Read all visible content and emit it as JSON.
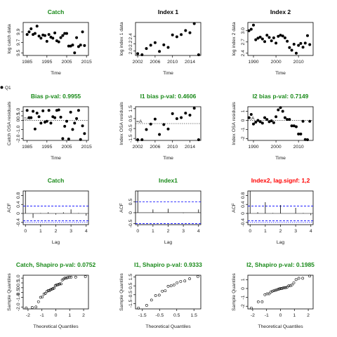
{
  "colors": {
    "ok": "#1a8a1a",
    "fail": "#ff0000",
    "limit": "#0000ff",
    "text": "#000000"
  },
  "legend": {
    "label": "Q1"
  },
  "chart_data": [
    {
      "type": "scatter",
      "title": "Catch",
      "title_color": "ok",
      "xlabel": "Time",
      "ylabel": "log catch data",
      "xlim": [
        1983,
        2016
      ],
      "ylim": [
        9.45,
        10.08
      ],
      "xticks": [
        1985,
        1995,
        2005,
        2015
      ],
      "yticks": [
        9.5,
        9.7,
        9.9
      ],
      "points": {
        "x": [
          1985,
          1986,
          1987,
          1988,
          1989,
          1990,
          1991,
          1992,
          1993,
          1994,
          1995,
          1996,
          1997,
          1998,
          1999,
          2000,
          2001,
          2002,
          2003,
          2004,
          2005,
          2006,
          2007,
          2008,
          2009,
          2010,
          2011,
          2012,
          2013,
          2014
        ],
        "y": [
          9.85,
          9.9,
          9.96,
          9.85,
          9.87,
          10.01,
          9.82,
          9.78,
          9.84,
          9.83,
          9.72,
          9.85,
          9.8,
          9.78,
          9.88,
          9.73,
          9.71,
          9.79,
          9.83,
          9.87,
          9.87,
          9.63,
          9.63,
          9.65,
          9.5,
          9.79,
          9.62,
          9.65,
          9.9,
          9.64
        ]
      }
    },
    {
      "type": "scatter",
      "title": "Index 1",
      "title_color": "text",
      "xlabel": "Time",
      "ylabel": "log index 1 data",
      "xlim": [
        2001.5,
        2016.5
      ],
      "ylim": [
        1.88,
        2.78
      ],
      "xticks": [
        2002,
        2006,
        2010,
        2014
      ],
      "yticks": [
        2.0,
        2.2,
        2.4
      ],
      "points": {
        "x": [
          2002,
          2003,
          2004,
          2005,
          2006,
          2007,
          2008,
          2009,
          2010,
          2011,
          2012,
          2013,
          2014,
          2015,
          2016
        ],
        "y": [
          1.93,
          1.9,
          2.07,
          2.16,
          2.23,
          1.99,
          2.17,
          2.1,
          2.44,
          2.39,
          2.45,
          2.56,
          2.5,
          2.75,
          1.82
        ]
      }
    },
    {
      "type": "scatter",
      "title": "Index 2",
      "title_color": "text",
      "xlabel": "Time",
      "ylabel": "log index 2 data",
      "xlim": [
        1987.5,
        2016.5
      ],
      "ylim": [
        2.34,
        3.22
      ],
      "xticks": [
        1990,
        2000,
        2010
      ],
      "yticks": [
        2.4,
        2.7,
        3.0
      ],
      "points": {
        "x": [
          1988,
          1989,
          1990,
          1991,
          1992,
          1993,
          1994,
          1995,
          1996,
          1997,
          1998,
          1999,
          2000,
          2001,
          2002,
          2003,
          2004,
          2005,
          2006,
          2007,
          2008,
          2009,
          2010,
          2011,
          2012,
          2013,
          2014,
          2015
        ],
        "y": [
          3.0,
          3.04,
          3.15,
          2.76,
          2.8,
          2.83,
          2.78,
          2.71,
          2.88,
          2.82,
          2.73,
          2.81,
          2.67,
          2.85,
          2.88,
          2.86,
          2.81,
          2.72,
          2.55,
          2.48,
          2.64,
          2.4,
          2.61,
          2.66,
          2.56,
          2.67,
          2.87,
          2.63
        ]
      }
    },
    {
      "type": "scatter",
      "title": "Bias p-val: 0.9955",
      "title_color": "ok",
      "xlabel": "Time",
      "ylabel": "Catch OSA residuals",
      "xlim": [
        1983,
        2016
      ],
      "ylim": [
        -2.2,
        1.5
      ],
      "xticks": [
        1985,
        1995,
        2005,
        2015
      ],
      "yticks": [
        -2.0,
        -1.0,
        0.0,
        0.5,
        1.0
      ],
      "points": {
        "x": [
          1985,
          1986,
          1987,
          1988,
          1989,
          1990,
          1991,
          1992,
          1993,
          1994,
          1995,
          1996,
          1997,
          1998,
          1999,
          2000,
          2001,
          2002,
          2003,
          2004,
          2005,
          2006,
          2007,
          2008,
          2009,
          2010,
          2011,
          2012,
          2013,
          2014
        ],
        "y": [
          1.1,
          0.3,
          0.3,
          1.0,
          -0.95,
          0.8,
          0.4,
          -0.3,
          1.05,
          -0.2,
          -0.1,
          1.1,
          -0.3,
          0.4,
          0.3,
          1.1,
          1.15,
          0.35,
          -2.0,
          -0.65,
          -0.1,
          -2.05,
          0.9,
          -1.0,
          -0.3,
          0.2,
          1.1,
          -2.1,
          -0.6,
          -1.45
        ]
      },
      "mean_label": "=A"
    },
    {
      "type": "scatter",
      "title": "I1 bias p-val: 0.4606",
      "title_color": "ok",
      "xlabel": "Time",
      "ylabel": "Index OSA residuals",
      "xlim": [
        2001.5,
        2016.5
      ],
      "ylim": [
        -1.7,
        1.7
      ],
      "xticks": [
        2002,
        2006,
        2010,
        2014
      ],
      "yticks": [
        -1.5,
        -0.5,
        0.5,
        1.5
      ],
      "points": {
        "x": [
          2002,
          2003,
          2004,
          2005,
          2006,
          2007,
          2008,
          2009,
          2010,
          2011,
          2012,
          2013,
          2014,
          2015,
          2016
        ],
        "y": [
          -2.0,
          -1.7,
          -0.6,
          -0.05,
          0.45,
          -1.1,
          -0.1,
          -0.55,
          1.0,
          0.5,
          0.6,
          1.05,
          0.85,
          1.55,
          -2.0
        ]
      },
      "mean_label": "=A"
    },
    {
      "type": "scatter",
      "title": "I2 bias p-val: 0.7149",
      "title_color": "ok",
      "xlabel": "Time",
      "ylabel": "Index OSA residuals",
      "xlim": [
        1987.5,
        2016.5
      ],
      "ylim": [
        -2.2,
        1.5
      ],
      "xticks": [
        1990,
        2000,
        2010
      ],
      "yticks": [
        -2.0,
        -1.0,
        0.0,
        1.0
      ],
      "points": {
        "x": [
          1988,
          1989,
          1990,
          1991,
          1992,
          1993,
          1994,
          1995,
          1996,
          1997,
          1998,
          1999,
          2000,
          2001,
          2002,
          2003,
          2004,
          2005,
          2006,
          2007,
          2008,
          2009,
          2010,
          2011,
          2012,
          2013,
          2014,
          2015
        ],
        "y": [
          0.3,
          0.65,
          -0.4,
          -0.2,
          0.0,
          -0.15,
          -0.3,
          0.3,
          0.1,
          -0.15,
          -0.05,
          -0.25,
          0.4,
          1.15,
          1.4,
          1.0,
          0.3,
          0.1,
          0.1,
          -0.6,
          -0.6,
          -0.7,
          -1.5,
          -1.5,
          -0.1,
          -2.1,
          -2.2,
          -0.1
        ]
      },
      "mean_label": "=A"
    },
    {
      "type": "bar",
      "title": "Catch",
      "title_color": "ok",
      "xlabel": "Lag",
      "ylabel": "ACF",
      "xlim": [
        -0.15,
        4.15
      ],
      "ylim": [
        -0.5,
        1.0
      ],
      "xticks": [
        0,
        1,
        2,
        3,
        4
      ],
      "yticks": [
        -0.4,
        0.0,
        0.4,
        0.8
      ],
      "lags": [
        0,
        0.5,
        1,
        1.5,
        2,
        2.5,
        3,
        3.5,
        4
      ],
      "values": [
        1.0,
        -0.2,
        0.02,
        0.05,
        -0.05,
        0.05,
        0.18,
        0.02,
        -0.1
      ],
      "ci": [
        0.33,
        -0.33
      ],
      "ci2": [
        -0.4
      ]
    },
    {
      "type": "bar",
      "title": "Index1",
      "title_color": "ok",
      "xlabel": "Lag",
      "ylabel": "ACF",
      "xlim": [
        -0.15,
        4.15
      ],
      "ylim": [
        -0.55,
        1.0
      ],
      "xticks": [
        0,
        1,
        2,
        3,
        4
      ],
      "yticks": [
        -0.5,
        0.0,
        0.5
      ],
      "lags": [
        0,
        1,
        2,
        3,
        4
      ],
      "values": [
        1.0,
        0.15,
        0.18,
        -0.02,
        0.15
      ],
      "ci": [
        0.5,
        -0.5
      ],
      "ci2": []
    },
    {
      "type": "bar",
      "title": "Index2, lag.signf: 1,2",
      "title_color": "fail",
      "xlabel": "Lag",
      "ylabel": "ACF",
      "xlim": [
        -0.15,
        4.15
      ],
      "ylim": [
        -0.5,
        1.0
      ],
      "xticks": [
        0,
        1,
        2,
        3,
        4
      ],
      "yticks": [
        -0.4,
        0.0,
        0.4,
        0.8
      ],
      "lags": [
        0,
        0.5,
        1,
        1.5,
        2,
        2.5,
        3,
        3.5,
        4
      ],
      "values": [
        1.0,
        0.05,
        0.5,
        0.02,
        0.37,
        0.0,
        0.25,
        0.02,
        -0.08
      ],
      "ci": [
        0.33,
        -0.33
      ],
      "ci2": [
        -0.4
      ]
    },
    {
      "type": "scatter",
      "title": "Catch, Shapiro p-val: 0.0752",
      "title_color": "ok",
      "xlabel": "Theoretical Quantiles",
      "ylabel": "Sample Quantiles",
      "xlim": [
        -2.35,
        2.35
      ],
      "ylim": [
        -2.2,
        1.3
      ],
      "xticks": [
        -2,
        -1,
        0,
        1,
        2
      ],
      "yticks": [
        -2.0,
        -1.0,
        -0.5,
        0.0,
        0.5,
        1.0
      ],
      "points": {
        "x": [
          -2.13,
          -1.7,
          -1.43,
          -1.25,
          -1.1,
          -0.97,
          -0.85,
          -0.75,
          -0.65,
          -0.55,
          -0.46,
          -0.38,
          -0.29,
          -0.21,
          -0.13,
          -0.04,
          0.04,
          0.13,
          0.21,
          0.29,
          0.38,
          0.46,
          0.55,
          0.65,
          0.75,
          0.85,
          0.97,
          1.1,
          1.43,
          2.13
        ],
        "y": [
          -2.1,
          -2.05,
          -2.0,
          -1.45,
          -1.0,
          -0.95,
          -0.65,
          -0.6,
          -0.4,
          -0.3,
          -0.3,
          -0.2,
          -0.15,
          -0.1,
          -0.05,
          0.2,
          0.3,
          0.3,
          0.35,
          0.4,
          0.4,
          0.8,
          0.9,
          1.0,
          1.0,
          1.05,
          1.1,
          1.1,
          1.1,
          1.15
        ]
      }
    },
    {
      "type": "scatter",
      "title": "I1, Shapiro p-val: 0.9333",
      "title_color": "ok",
      "xlabel": "Theoretical Quantiles",
      "ylabel": "Sample Quantiles",
      "xlim": [
        -1.9,
        1.9
      ],
      "ylim": [
        -2.1,
        1.7
      ],
      "xticks": [
        -1.5,
        -0.5,
        0.5,
        1.5
      ],
      "yticks": [
        -1.5,
        -0.5,
        0.5,
        1.5
      ],
      "points": {
        "x": [
          -1.73,
          -1.25,
          -0.97,
          -0.73,
          -0.52,
          -0.34,
          -0.17,
          0,
          0.17,
          0.34,
          0.52,
          0.73,
          0.97,
          1.25,
          1.73
        ],
        "y": [
          -2.0,
          -1.7,
          -1.1,
          -0.6,
          -0.55,
          -0.1,
          -0.05,
          0.45,
          0.5,
          0.6,
          0.85,
          1.0,
          1.05,
          1.3,
          1.55
        ]
      }
    },
    {
      "type": "scatter",
      "title": "I2, Shapiro p-val: 0.1985",
      "title_color": "ok",
      "xlabel": "Theoretical Quantiles",
      "ylabel": "Sample Quantiles",
      "xlim": [
        -2.35,
        2.35
      ],
      "ylim": [
        -2.3,
        1.5
      ],
      "xticks": [
        -2,
        -1,
        0,
        1,
        2
      ],
      "yticks": [
        -2,
        -1,
        0,
        1
      ],
      "points": {
        "x": [
          -2.1,
          -1.6,
          -1.32,
          -1.12,
          -0.96,
          -0.82,
          -0.7,
          -0.59,
          -0.48,
          -0.38,
          -0.28,
          -0.18,
          -0.09,
          0,
          0.09,
          0.18,
          0.28,
          0.38,
          0.48,
          0.59,
          0.7,
          0.82,
          0.96,
          1.12,
          1.32,
          1.6,
          2.1
        ],
        "y": [
          -2.2,
          -1.5,
          -1.5,
          -0.7,
          -0.6,
          -0.6,
          -0.4,
          -0.3,
          -0.25,
          -0.2,
          -0.15,
          -0.1,
          -0.05,
          0.0,
          0.0,
          0.05,
          0.1,
          0.1,
          0.15,
          0.3,
          0.3,
          0.4,
          0.65,
          1.0,
          1.15,
          1.15,
          1.4
        ]
      }
    }
  ]
}
